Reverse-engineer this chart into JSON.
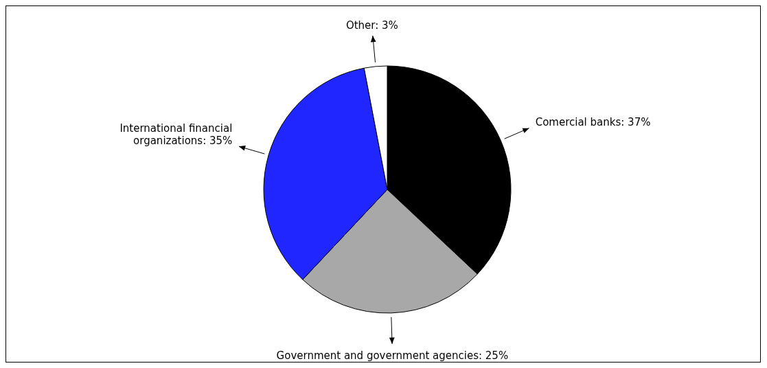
{
  "chart_data": {
    "type": "pie",
    "categories": [
      "Comercial banks",
      "Government and government agencies",
      "International financial organizations",
      "Other"
    ],
    "values": [
      37,
      25,
      35,
      3
    ],
    "colors": [
      "#000000",
      "#a8a8a8",
      "#1f26ff",
      "#ffffff"
    ],
    "value_labels": [
      "37%",
      "25%",
      "35%",
      "3%"
    ],
    "legend": false
  }
}
